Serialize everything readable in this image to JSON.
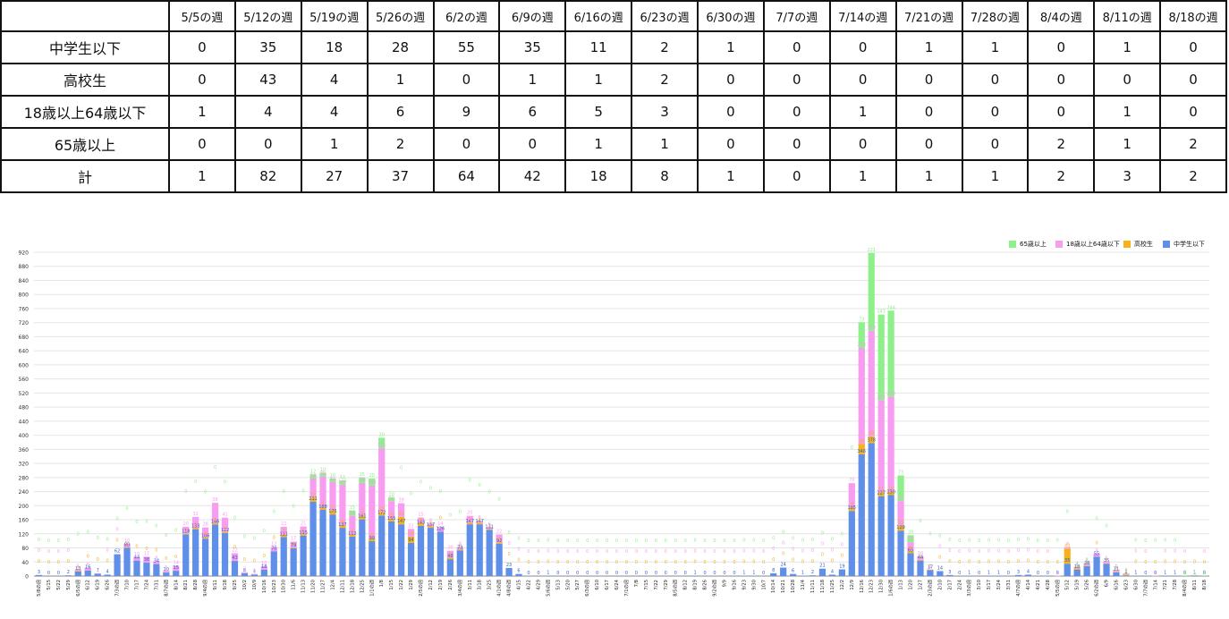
{
  "table": {
    "corner": "",
    "weeks": [
      "5/5の週",
      "5/12の週",
      "5/19の週",
      "5/26の週",
      "6/2の週",
      "6/9の週",
      "6/16の週",
      "6/23の週",
      "6/30の週",
      "7/7の週",
      "7/14の週",
      "7/21の週",
      "7/28の週",
      "8/4の週",
      "8/11の週",
      "8/18の週"
    ],
    "rows": [
      {
        "label": "中学生以下",
        "values": [
          "0",
          "35",
          "18",
          "28",
          "55",
          "35",
          "11",
          "2",
          "1",
          "0",
          "0",
          "1",
          "1",
          "0",
          "1",
          "0"
        ]
      },
      {
        "label": "高校生",
        "values": [
          "0",
          "43",
          "4",
          "1",
          "0",
          "1",
          "1",
          "2",
          "0",
          "0",
          "0",
          "0",
          "0",
          "0",
          "0",
          "0"
        ]
      },
      {
        "label": "18歳以上64歳以下",
        "values": [
          "1",
          "4",
          "4",
          "6",
          "9",
          "6",
          "5",
          "3",
          "0",
          "0",
          "1",
          "0",
          "0",
          "0",
          "1",
          "0"
        ]
      },
      {
        "label": "65歳以上",
        "values": [
          "0",
          "0",
          "1",
          "2",
          "0",
          "0",
          "1",
          "1",
          "0",
          "0",
          "0",
          "0",
          "0",
          "2",
          "1",
          "2"
        ]
      },
      {
        "label": "計",
        "values": [
          "1",
          "82",
          "27",
          "37",
          "64",
          "42",
          "18",
          "8",
          "1",
          "0",
          "1",
          "1",
          "1",
          "2",
          "3",
          "2"
        ]
      }
    ]
  },
  "legend": [
    {
      "label": "65歳以上",
      "color": "#8ef08a"
    },
    {
      "label": "18歳以上64歳以下",
      "color": "#f79cf0"
    },
    {
      "label": "高校生",
      "color": "#f5b21a"
    },
    {
      "label": "中学生以下",
      "color": "#5f8fe8"
    }
  ],
  "chart_data": {
    "type": "bar",
    "stacked": true,
    "ylim": [
      0,
      920
    ],
    "yticks": [
      0,
      40,
      80,
      120,
      160,
      200,
      240,
      280,
      320,
      360,
      400,
      440,
      480,
      520,
      560,
      600,
      640,
      680,
      720,
      760,
      800,
      840,
      880,
      920
    ],
    "categories": [
      "5/8の週",
      "5/15",
      "5/22",
      "5/29",
      "6/5の週",
      "6/12",
      "6/19",
      "6/26",
      "7/3の週",
      "7/10",
      "7/17",
      "7/24",
      "7/31",
      "8/7の週",
      "8/14",
      "8/21",
      "8/28",
      "9/4の週",
      "9/11",
      "9/18",
      "9/25",
      "10/2",
      "10/9",
      "10/16",
      "10/23",
      "10/30",
      "11/6",
      "11/13",
      "11/20",
      "11/27",
      "12/4",
      "12/11",
      "12/18",
      "12/25",
      "1/1の週",
      "1/8",
      "1/15",
      "1/22",
      "1/29",
      "2/5の週",
      "2/12",
      "2/19",
      "2/26",
      "3/4の週",
      "3/11",
      "3/18",
      "3/25",
      "4/1の週",
      "4/8の週",
      "4/15",
      "4/22",
      "4/29",
      "5/6の週",
      "5/13",
      "5/20",
      "5/27",
      "6/3の週",
      "6/10",
      "6/17",
      "6/24",
      "7/1の週",
      "7/8",
      "7/15",
      "7/22",
      "7/29",
      "8/5の週",
      "8/12",
      "8/19",
      "8/26",
      "9/2の週",
      "9/9",
      "9/16",
      "9/23",
      "9/30",
      "10/7",
      "10/14",
      "10/21",
      "10/28",
      "11/4",
      "11/11",
      "11/18",
      "11/25",
      "12/2",
      "12/9",
      "12/16",
      "12/23",
      "12/30",
      "1/6の週",
      "1/13",
      "1/20",
      "1/27",
      "2/3の週",
      "2/10",
      "2/17",
      "2/24",
      "3/3の週",
      "3/10",
      "3/17",
      "3/24",
      "3/31",
      "4/7の週",
      "4/14",
      "4/21",
      "4/28",
      "5/5の週",
      "5/12",
      "5/19",
      "5/26",
      "6/2の週",
      "6/9",
      "6/16",
      "6/23",
      "6/30",
      "7/7の週",
      "7/14",
      "7/21",
      "7/28",
      "8/4の週",
      "8/11",
      "8/18"
    ],
    "series": [
      {
        "name": "中学生以下",
        "values": [
          3,
          0,
          0,
          2,
          13,
          16,
          7,
          4,
          62,
          80,
          44,
          38,
          34,
          10,
          15,
          118,
          133,
          106,
          146,
          122,
          43,
          8,
          4,
          18,
          70,
          111,
          79,
          115,
          211,
          188,
          175,
          137,
          112,
          161,
          99,
          172,
          155,
          147,
          94,
          143,
          137,
          126,
          48,
          73,
          147,
          147,
          131,
          92,
          23,
          6,
          0,
          0,
          1,
          0,
          0,
          0,
          0,
          0,
          0,
          0,
          0,
          0,
          0,
          0,
          0,
          0,
          0,
          1,
          0,
          0,
          0,
          0,
          1,
          1,
          0,
          8,
          24,
          6,
          1,
          2,
          21,
          4,
          19,
          185,
          346,
          378,
          227,
          230,
          129,
          65,
          44,
          17,
          14,
          3,
          0,
          1,
          0,
          1,
          1,
          0,
          3,
          4,
          0,
          0,
          0,
          35,
          18,
          28,
          55,
          35,
          11,
          2,
          1,
          0,
          0,
          1,
          1,
          0,
          1,
          0
        ]
      },
      {
        "name": "高校生",
        "values": [
          0,
          0,
          0,
          0,
          1,
          0,
          0,
          0,
          0,
          2,
          0,
          0,
          0,
          0,
          0,
          2,
          3,
          4,
          4,
          3,
          0,
          0,
          0,
          0,
          0,
          7,
          2,
          5,
          12,
          7,
          12,
          8,
          6,
          9,
          8,
          10,
          8,
          21,
          18,
          8,
          4,
          0,
          4,
          2,
          4,
          4,
          2,
          4,
          0,
          0,
          0,
          0,
          0,
          0,
          0,
          0,
          0,
          0,
          0,
          0,
          0,
          0,
          0,
          0,
          0,
          0,
          0,
          0,
          0,
          0,
          0,
          0,
          0,
          0,
          0,
          0,
          0,
          0,
          0,
          0,
          0,
          0,
          0,
          9,
          29,
          19,
          11,
          10,
          14,
          6,
          2,
          1,
          0,
          0,
          0,
          0,
          0,
          0,
          0,
          0,
          0,
          0,
          0,
          0,
          0,
          43,
          4,
          1,
          0,
          1,
          1,
          2,
          0,
          0,
          0,
          0,
          0,
          0,
          0,
          0
        ]
      },
      {
        "name": "18歳以上64歳以下",
        "values": [
          0,
          0,
          0,
          0,
          5,
          8,
          1,
          0,
          0,
          10,
          10,
          17,
          8,
          5,
          14,
          20,
          32,
          28,
          58,
          41,
          22,
          3,
          2,
          10,
          12,
          22,
          17,
          21,
          54,
          88,
          80,
          115,
          53,
          95,
          150,
          181,
          50,
          39,
          22,
          15,
          8,
          14,
          20,
          8,
          20,
          6,
          6,
          22,
          0,
          0,
          0,
          0,
          0,
          0,
          0,
          0,
          0,
          0,
          0,
          0,
          0,
          0,
          0,
          0,
          0,
          0,
          0,
          0,
          0,
          0,
          0,
          0,
          0,
          0,
          0,
          0,
          0,
          0,
          0,
          0,
          0,
          0,
          0,
          70,
          273,
          300,
          262,
          270,
          70,
          25,
          10,
          1,
          0,
          0,
          0,
          0,
          0,
          0,
          0,
          0,
          0,
          0,
          0,
          0,
          1,
          4,
          4,
          6,
          9,
          6,
          5,
          3,
          0,
          0,
          1,
          0,
          0,
          0,
          1,
          0
        ]
      },
      {
        "name": "65歳以上",
        "values": [
          0,
          0,
          0,
          0,
          0,
          0,
          0,
          0,
          0,
          0,
          0,
          0,
          0,
          0,
          0,
          0,
          0,
          0,
          0,
          0,
          0,
          0,
          0,
          0,
          0,
          0,
          0,
          0,
          12,
          10,
          10,
          12,
          15,
          15,
          20,
          30,
          10,
          0,
          0,
          0,
          0,
          0,
          0,
          0,
          0,
          0,
          0,
          0,
          0,
          0,
          0,
          0,
          0,
          0,
          0,
          0,
          0,
          0,
          0,
          0,
          0,
          0,
          0,
          0,
          0,
          0,
          0,
          0,
          0,
          0,
          0,
          0,
          0,
          0,
          0,
          0,
          0,
          0,
          0,
          0,
          0,
          0,
          0,
          0,
          73,
          221,
          243,
          244,
          73,
          20,
          0,
          0,
          0,
          0,
          0,
          0,
          0,
          0,
          0,
          0,
          0,
          0,
          0,
          0,
          0,
          0,
          1,
          2,
          0,
          0,
          1,
          1,
          0,
          0,
          0,
          0,
          0,
          2,
          1,
          2
        ]
      }
    ],
    "xlabel": "",
    "ylabel": "",
    "grid": true,
    "legend_position": "top-right"
  }
}
